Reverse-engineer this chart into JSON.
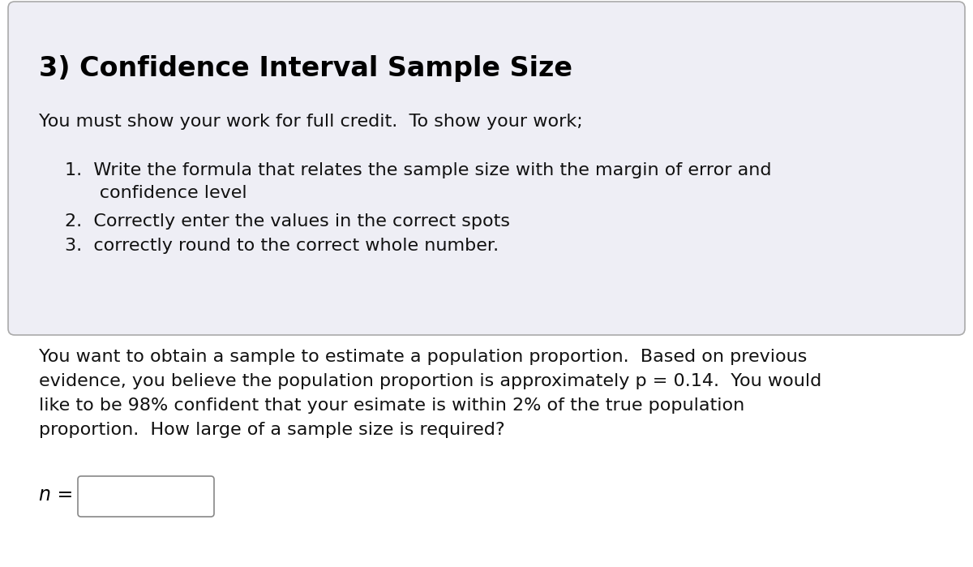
{
  "title": "3) Confidence Interval Sample Size",
  "page_bg": "#f0f0f8",
  "box_bg": "#eeeef5",
  "box_border": "#aaaaaa",
  "bottom_bg": "#ffffff",
  "intro_line": "You must show your work for full credit.  To show your work;",
  "list_item1": "1.  Write the formula that relates the sample size with the margin of error and",
  "list_item1b": "      confidence level",
  "list_item2": "2.  Correctly enter the values in the correct spots",
  "list_item3": "3.  correctly round to the correct whole number.",
  "problem_text_l1": "You want to obtain a sample to estimate a population proportion.  Based on previous",
  "problem_text_l2": "evidence, you believe the population proportion is approximately p = 0.14.  You would",
  "problem_text_l3": "like to be 98% confident that your esimate is within 2% of the true population",
  "problem_text_l4": "proportion.  How large of a sample size is required?",
  "answer_label": "n =",
  "title_fontsize": 24,
  "body_fontsize": 16,
  "font_family": "DejaVu Sans"
}
